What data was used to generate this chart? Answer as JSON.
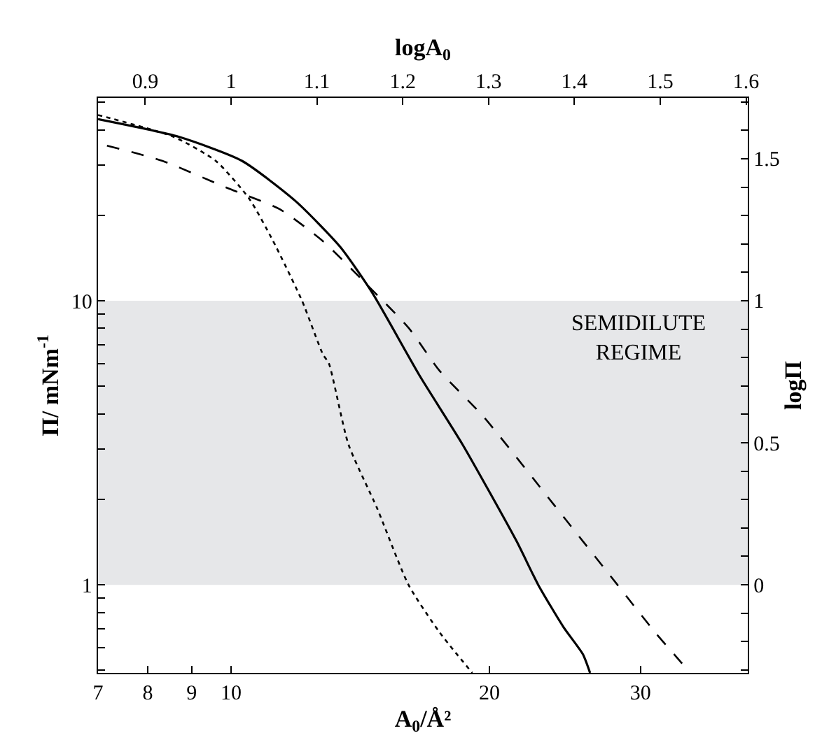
{
  "chart_data": {
    "type": "line",
    "xlabel": "A$_{0}$/Å²",
    "ylabel": "Π/ mNm$^{-1}$",
    "x2label": "logA$_{0}$",
    "y2label": "logΠ",
    "log": "xy",
    "grid": false,
    "xlim": [
      7,
      40
    ],
    "xticks": [
      7,
      8,
      9,
      10,
      20,
      30
    ],
    "x2lim": [
      0.845,
      1.602
    ],
    "x2ticks": [
      0.9,
      1,
      1.1,
      1.2,
      1.3,
      1.4,
      1.5,
      1.6
    ],
    "ylim": [
      0.49,
      51.8
    ],
    "yticks": [
      {
        "value": 0.5,
        "label": null
      },
      {
        "value": 0.6,
        "label": null
      },
      {
        "value": 0.7,
        "label": null
      },
      {
        "value": 0.8,
        "label": null
      },
      {
        "value": 0.9,
        "label": null
      },
      1,
      {
        "value": 2,
        "label": null
      },
      {
        "value": 3,
        "label": null
      },
      {
        "value": 4,
        "label": null
      },
      {
        "value": 5,
        "label": null
      },
      {
        "value": 6,
        "label": null
      },
      {
        "value": 7,
        "label": null
      },
      {
        "value": 8,
        "label": null
      },
      {
        "value": 9,
        "label": null
      },
      10,
      {
        "value": 20,
        "label": null
      },
      {
        "value": 30,
        "label": null
      },
      {
        "value": 40,
        "label": null
      },
      {
        "value": 50,
        "label": null
      }
    ],
    "y2lim": [
      -0.31,
      1.714
    ],
    "y2ticks": [
      {
        "value": -0.3,
        "label": null
      },
      {
        "value": -0.2,
        "label": null
      },
      {
        "value": -0.1,
        "label": null
      },
      0,
      {
        "value": 0.1,
        "label": null
      },
      {
        "value": 0.2,
        "label": null
      },
      {
        "value": 0.3,
        "label": null
      },
      {
        "value": 0.4,
        "label": null
      },
      0.5,
      {
        "value": 0.6,
        "label": null
      },
      {
        "value": 0.7,
        "label": null
      },
      {
        "value": 0.8,
        "label": null
      },
      {
        "value": 0.9,
        "label": null
      },
      1,
      {
        "value": 1.1,
        "label": null
      },
      {
        "value": 1.2,
        "label": null
      },
      {
        "value": 1.3,
        "label": null
      },
      {
        "value": 1.4,
        "label": null
      },
      1.5,
      {
        "value": 1.6,
        "label": null
      },
      {
        "value": 1.7,
        "label": null
      }
    ],
    "bands": [
      {
        "axis": "y",
        "from": 1,
        "to": 10,
        "label": "SEMIDILUTE\nREGIME",
        "color": "#e6e7e9"
      }
    ],
    "series": [
      {
        "color": "#000000",
        "line_style": "solid",
        "x": [
          7.0,
          8.69,
          10.3,
          11.9,
          13.4,
          14.6,
          16.6,
          18.6,
          21.5,
          22.8,
          24.4,
          25.7,
          26.2
        ],
        "values": [
          43.6,
          37.8,
          31.1,
          22.4,
          15.5,
          10.7,
          5.43,
          3.13,
          1.43,
          1.0,
          0.71,
          0.57,
          0.49
        ]
      },
      {
        "color": "#000000",
        "line_style": "dashed",
        "x": [
          7.17,
          8.32,
          9.89,
          11.4,
          12.8,
          14.4,
          16.1,
          17.5,
          19.7,
          23.7,
          28.2,
          31.2,
          33.7
        ],
        "values": [
          35.2,
          31.1,
          25.0,
          21.0,
          16.2,
          11.4,
          8.04,
          5.67,
          3.9,
          1.94,
          1.0,
          0.68,
          0.52
        ]
      },
      {
        "color": "#000000",
        "line_style": "dotted",
        "x": [
          7.0,
          8.57,
          9.6,
          10.5,
          11.2,
          12.1,
          12.8,
          13.0,
          13.7,
          14.8,
          16.1,
          17.5,
          19.1
        ],
        "values": [
          45.1,
          37.8,
          31.1,
          22.9,
          16.2,
          10.0,
          6.47,
          6.03,
          3.13,
          1.86,
          1.0,
          0.68,
          0.49
        ]
      }
    ]
  }
}
